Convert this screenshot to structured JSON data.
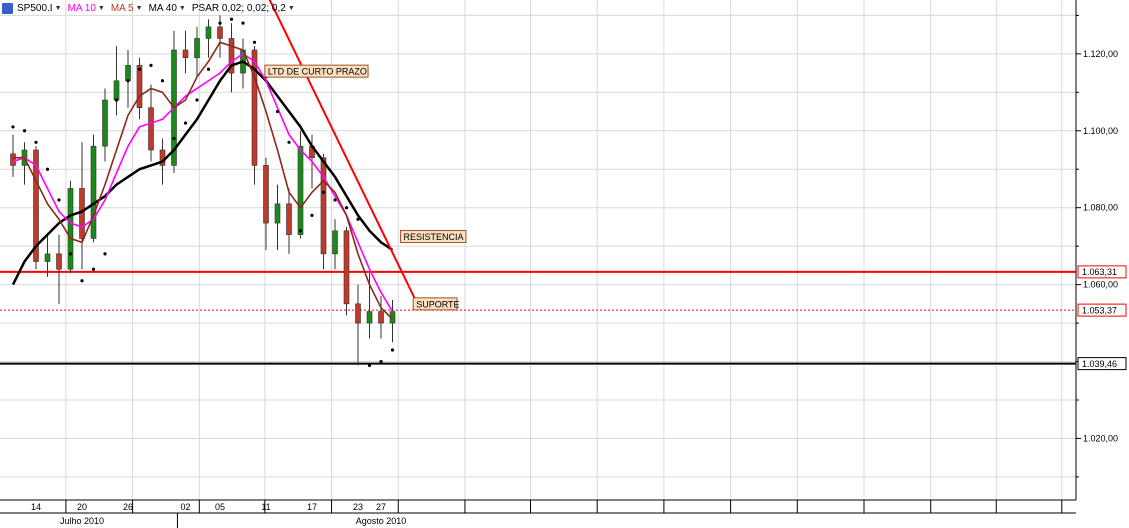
{
  "legend": {
    "symbol": "SP500.I",
    "ma10": "MA 10",
    "ma5": "MA 5",
    "ma40": "MA 40",
    "psar": "PSAR 0,02; 0,02; 0,2",
    "dropdown_icon": "triangle-down-icon",
    "logo_icon": "chart-logo-icon"
  },
  "colors": {
    "candle_up": "#1a8a1a",
    "candle_down": "#c0392b",
    "ma10": "#ff00ff",
    "ma5": "#8b2a1a",
    "ma40": "#000000",
    "psar": "#000000",
    "trend": "#ff0000",
    "grid": "#d9d9d9",
    "price_label_red": "#ff0000"
  },
  "chart_data": {
    "type": "candlestick",
    "symbol": "SP500.I",
    "y_axis": {
      "range": [
        1004,
        1134
      ],
      "ticks": [
        1020,
        1040,
        1060,
        1080,
        1100,
        1120
      ],
      "tick_labels": [
        "1.020,00",
        "1.040,00",
        "1.060,00",
        "1.080,00",
        "1.100,00",
        "1.120,00"
      ]
    },
    "x_axis": {
      "day_labels": [
        {
          "label": "14",
          "index": 2
        },
        {
          "label": "20",
          "index": 6
        },
        {
          "label": "26",
          "index": 10
        },
        {
          "label": "02",
          "index": 15
        },
        {
          "label": "05",
          "index": 18
        },
        {
          "label": "11",
          "index": 22
        },
        {
          "label": "17",
          "index": 26
        },
        {
          "label": "23",
          "index": 30
        },
        {
          "label": "27",
          "index": 32
        }
      ],
      "month_labels": [
        {
          "label": "Julho 2010",
          "index": 6
        },
        {
          "label": "Agosto 2010",
          "index": 32
        }
      ]
    },
    "candles": [
      {
        "o": 1094.0,
        "h": 1099.0,
        "l": 1088.0,
        "c": 1091.0
      },
      {
        "o": 1091.0,
        "h": 1097.0,
        "l": 1086.0,
        "c": 1095.0
      },
      {
        "o": 1095.0,
        "h": 1096.0,
        "l": 1064.0,
        "c": 1066.0
      },
      {
        "o": 1066.0,
        "h": 1073.0,
        "l": 1062.0,
        "c": 1068.0
      },
      {
        "o": 1068.0,
        "h": 1073.0,
        "l": 1055.0,
        "c": 1064.0
      },
      {
        "o": 1064.0,
        "h": 1087.0,
        "l": 1063.0,
        "c": 1085.0
      },
      {
        "o": 1085.0,
        "h": 1097.0,
        "l": 1064.0,
        "c": 1072.0
      },
      {
        "o": 1072.0,
        "h": 1099.0,
        "l": 1071.0,
        "c": 1096.0
      },
      {
        "o": 1096.0,
        "h": 1111.0,
        "l": 1092.0,
        "c": 1108.0
      },
      {
        "o": 1108.0,
        "h": 1122.0,
        "l": 1104.0,
        "c": 1113.0
      },
      {
        "o": 1113.0,
        "h": 1121.0,
        "l": 1106.0,
        "c": 1117.0
      },
      {
        "o": 1117.0,
        "h": 1119.0,
        "l": 1103.0,
        "c": 1106.0
      },
      {
        "o": 1106.0,
        "h": 1112.0,
        "l": 1092.0,
        "c": 1095.0
      },
      {
        "o": 1095.0,
        "h": 1098.0,
        "l": 1086.0,
        "c": 1091.0
      },
      {
        "o": 1091.0,
        "h": 1126.0,
        "l": 1089.0,
        "c": 1121.0
      },
      {
        "o": 1121.0,
        "h": 1126.0,
        "l": 1115.0,
        "c": 1119.0
      },
      {
        "o": 1119.0,
        "h": 1127.0,
        "l": 1114.0,
        "c": 1124.0
      },
      {
        "o": 1124.0,
        "h": 1129.0,
        "l": 1119.0,
        "c": 1127.0
      },
      {
        "o": 1127.0,
        "h": 1130.0,
        "l": 1119.0,
        "c": 1124.0
      },
      {
        "o": 1124.0,
        "h": 1128.0,
        "l": 1110.0,
        "c": 1115.0
      },
      {
        "o": 1115.0,
        "h": 1124.0,
        "l": 1111.0,
        "c": 1121.0
      },
      {
        "o": 1121.0,
        "h": 1122.0,
        "l": 1086.0,
        "c": 1091.0
      },
      {
        "o": 1091.0,
        "h": 1093.0,
        "l": 1069.0,
        "c": 1076.0
      },
      {
        "o": 1076.0,
        "h": 1086.0,
        "l": 1069.0,
        "c": 1081.0
      },
      {
        "o": 1081.0,
        "h": 1085.0,
        "l": 1068.0,
        "c": 1073.0
      },
      {
        "o": 1073.0,
        "h": 1100.0,
        "l": 1072.0,
        "c": 1096.0
      },
      {
        "o": 1096.0,
        "h": 1099.0,
        "l": 1085.0,
        "c": 1093.0
      },
      {
        "o": 1093.0,
        "h": 1094.0,
        "l": 1064.0,
        "c": 1068.0
      },
      {
        "o": 1068.0,
        "h": 1077.0,
        "l": 1064.0,
        "c": 1074.0
      },
      {
        "o": 1074.0,
        "h": 1075.0,
        "l": 1052.0,
        "c": 1055.0
      },
      {
        "o": 1055.0,
        "h": 1060.0,
        "l": 1039.0,
        "c": 1050.0
      },
      {
        "o": 1050.0,
        "h": 1063.0,
        "l": 1046.0,
        "c": 1053.0
      },
      {
        "o": 1053.0,
        "h": 1057.0,
        "l": 1046.0,
        "c": 1050.0
      },
      {
        "o": 1050.0,
        "h": 1056.0,
        "l": 1045.0,
        "c": 1053.0
      }
    ],
    "ma10": [
      1092,
      1093,
      1091,
      1085,
      1079,
      1076,
      1075,
      1077,
      1082,
      1089,
      1096,
      1101,
      1102,
      1103,
      1106,
      1109,
      1111,
      1113,
      1115,
      1118,
      1120,
      1118,
      1113,
      1106,
      1099,
      1095,
      1092,
      1088,
      1083,
      1078,
      1071,
      1064,
      1058,
      1053
    ],
    "ma5": [
      1093,
      1093,
      1087,
      1081,
      1077,
      1072,
      1071,
      1078,
      1086,
      1095,
      1104,
      1109,
      1111,
      1110,
      1106,
      1108,
      1114,
      1118,
      1123,
      1122,
      1121,
      1114,
      1105,
      1095,
      1084,
      1080,
      1084,
      1087,
      1084,
      1078,
      1068,
      1060,
      1054,
      1051
    ],
    "ma40": [
      1060,
      1066,
      1070,
      1073,
      1076,
      1078,
      1079,
      1081,
      1083,
      1086,
      1088,
      1090,
      1091,
      1092,
      1095,
      1099,
      1103,
      1108,
      1113,
      1117,
      1118,
      1116,
      1113,
      1109,
      1105,
      1101,
      1096,
      1092,
      1088,
      1083,
      1078,
      1074,
      1071,
      1069
    ],
    "psar": [
      1101,
      1100,
      1097,
      1090,
      1082,
      1068,
      1061,
      1064,
      1068,
      1108,
      1113,
      1116,
      1117,
      1113,
      1098,
      1102,
      1108,
      1116,
      1128,
      1129,
      1128,
      1123,
      1114,
      1105,
      1097,
      1074,
      1078,
      1084,
      1082,
      1080,
      1077,
      1039,
      1040,
      1043
    ],
    "horizontal_levels": [
      {
        "value": 1063.31,
        "label": "1.063,31",
        "style": "solid",
        "color": "#ff0000"
      },
      {
        "value": 1053.37,
        "label": "1.053,37",
        "style": "dotted",
        "color": "#ff0000"
      },
      {
        "value": 1039.46,
        "label": "1.039,46",
        "style": "solid",
        "color": "#000000"
      }
    ],
    "trendline": {
      "start": {
        "index": 22.0,
        "value": 1136.0
      },
      "end": {
        "index": 35.0,
        "value": 1056.0
      }
    },
    "annotations": [
      {
        "text": "LTD DE CURTO PRAZO",
        "index": 21.9,
        "value": 1115.5
      },
      {
        "text": "RESISTENCIA",
        "index": 33.7,
        "value": 1072.5
      },
      {
        "text": "SUPORTE",
        "index": 34.8,
        "value": 1055.0
      }
    ]
  }
}
